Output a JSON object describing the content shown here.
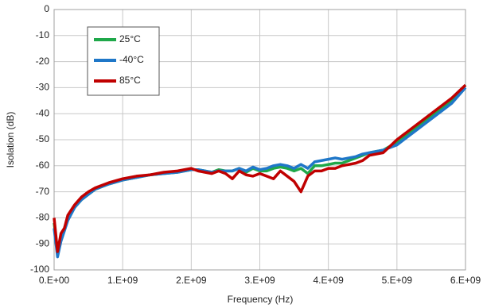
{
  "chart_data": {
    "type": "line",
    "x_label": "Frequency (Hz)",
    "y_label": "Isolation (dB)",
    "x": [
      0,
      50000000.0,
      100000000.0,
      150000000.0,
      200000000.0,
      300000000.0,
      400000000.0,
      500000000.0,
      600000000.0,
      800000000.0,
      1000000000.0,
      1200000000.0,
      1400000000.0,
      1600000000.0,
      1800000000.0,
      2000000000.0,
      2100000000.0,
      2200000000.0,
      2300000000.0,
      2400000000.0,
      2500000000.0,
      2600000000.0,
      2700000000.0,
      2800000000.0,
      2900000000.0,
      3000000000.0,
      3100000000.0,
      3200000000.0,
      3300000000.0,
      3400000000.0,
      3500000000.0,
      3600000000.0,
      3700000000.0,
      3800000000.0,
      3900000000.0,
      4000000000.0,
      4100000000.0,
      4200000000.0,
      4300000000.0,
      4400000000.0,
      4500000000.0,
      4600000000.0,
      4800000000.0,
      5000000000.0,
      5200000000.0,
      5400000000.0,
      5600000000.0,
      5800000000.0,
      6000000000.0
    ],
    "series": [
      {
        "name": "25°C",
        "color": "#1fa84a",
        "values": [
          -82,
          -93,
          -88,
          -84,
          -80,
          -76,
          -73,
          -71,
          -69,
          -67,
          -65.5,
          -64.5,
          -63.5,
          -63,
          -62.5,
          -61.5,
          -61.5,
          -62,
          -62.5,
          -61.5,
          -62,
          -62,
          -61,
          -62.5,
          -61,
          -62,
          -62,
          -61,
          -60.5,
          -61,
          -62,
          -61,
          -63,
          -60,
          -60,
          -59.5,
          -59,
          -59,
          -58,
          -57,
          -56,
          -55,
          -54,
          -51,
          -47,
          -43,
          -39,
          -35,
          -29
        ]
      },
      {
        "name": "-40°C",
        "color": "#1f77c8",
        "values": [
          -84,
          -95,
          -89,
          -85,
          -81,
          -76,
          -73,
          -71,
          -69,
          -67,
          -65.5,
          -64.5,
          -63.5,
          -63,
          -62.5,
          -61.5,
          -61.5,
          -62,
          -62.5,
          -62,
          -62,
          -62,
          -61,
          -62,
          -60.5,
          -61.5,
          -61,
          -60,
          -59.5,
          -60,
          -61,
          -59.5,
          -61,
          -58.5,
          -58,
          -57.5,
          -57,
          -57.5,
          -57,
          -56.5,
          -55.5,
          -55,
          -54,
          -52,
          -48,
          -44,
          -40,
          -36,
          -30
        ]
      },
      {
        "name": "85°C",
        "color": "#c00000",
        "values": [
          -80,
          -93,
          -86,
          -84,
          -79,
          -75,
          -72,
          -70,
          -68.5,
          -66.5,
          -65,
          -64,
          -63.5,
          -62.5,
          -62,
          -61,
          -62,
          -62.5,
          -63,
          -62,
          -63,
          -65,
          -62,
          -63.5,
          -64,
          -63,
          -64,
          -65,
          -62,
          -64,
          -66,
          -70,
          -64,
          -62,
          -62,
          -61,
          -61,
          -60,
          -59.5,
          -59,
          -58,
          -56,
          -55,
          -50,
          -46,
          -42,
          -38,
          -34,
          -29
        ]
      }
    ],
    "xlim": [
      0,
      6000000000.0
    ],
    "xticks": [
      {
        "value": 0,
        "label": "0.E+00"
      },
      {
        "value": 1000000000.0,
        "label": "1.E+09"
      },
      {
        "value": 2000000000.0,
        "label": "2.E+09"
      },
      {
        "value": 3000000000.0,
        "label": "3.E+09"
      },
      {
        "value": 4000000000.0,
        "label": "4.E+09"
      },
      {
        "value": 5000000000.0,
        "label": "5.E+09"
      },
      {
        "value": 6000000000.0,
        "label": "6.E+09"
      }
    ],
    "ylim": [
      -100,
      0
    ],
    "yticks": [
      -100,
      -90,
      -80,
      -70,
      -60,
      -50,
      -40,
      -30,
      -20,
      -10,
      0
    ],
    "grid": true,
    "legend": "upper-left"
  }
}
